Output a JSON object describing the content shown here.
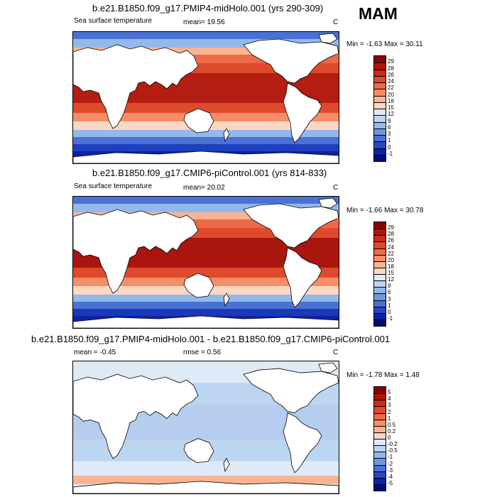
{
  "season": "MAM",
  "panels": [
    {
      "title": "b.e21.B1850.f09_g17.PMIP4-midHolo.001 (yrs 290-309)",
      "variable": "Sea surface temperature",
      "stat": "mean=  19.56",
      "unit": "C",
      "minmax": "Min = -1.63 Max =  30.11",
      "kind": "abs",
      "levels": [
        "29",
        "28",
        "26",
        "24",
        "22",
        "20",
        "18",
        "15",
        "12",
        "9",
        "6",
        "3",
        "1",
        "0",
        "-1"
      ],
      "colors": [
        "#8b0000",
        "#b0150a",
        "#cc2a1a",
        "#df4a2c",
        "#ec6a46",
        "#f58e66",
        "#f9b494",
        "#fbd8c4",
        "#dfeaf7",
        "#bcd5f1",
        "#93b8ea",
        "#6f97e0",
        "#4a72d4",
        "#2548c4",
        "#0a23a8",
        "#000e7a"
      ],
      "tropic_color": "#b41d12",
      "polar_color": "#1f3fbf"
    },
    {
      "title": "b.e21.B1850.f09_g17.CMIP6-piControl.001 (yrs 814-833)",
      "variable": "Sea surface temperature",
      "stat": "mean=  20.02",
      "unit": "C",
      "minmax": "Min = -1.66 Max =  30.78",
      "kind": "abs",
      "levels": [
        "29",
        "28",
        "26",
        "24",
        "22",
        "20",
        "18",
        "15",
        "12",
        "9",
        "6",
        "3",
        "1",
        "0",
        "-1"
      ],
      "colors": [
        "#8b0000",
        "#b0150a",
        "#cc2a1a",
        "#df4a2c",
        "#ec6a46",
        "#f58e66",
        "#f9b494",
        "#fbd8c4",
        "#dfeaf7",
        "#bcd5f1",
        "#93b8ea",
        "#6f97e0",
        "#4a72d4",
        "#2548c4",
        "#0a23a8",
        "#000e7a"
      ],
      "tropic_color": "#a8160d",
      "polar_color": "#1a38b8"
    },
    {
      "title": "b.e21.B1850.f09_g17.PMIP4-midHolo.001 - b.e21.B1850.f09_g17.CMIP6-piControl.001",
      "variable": "",
      "stat": "mean =  -0.45",
      "stat2": "rmse =   0.56",
      "unit": "C",
      "minmax": "Min = -1.78 Max =  1.48",
      "kind": "diff",
      "levels": [
        "5",
        "4",
        "3",
        "2",
        "1",
        "0.5",
        "0.2",
        "0",
        "-0.2",
        "-0.5",
        "-1",
        "-2",
        "-3",
        "-4",
        "-5"
      ],
      "colors": [
        "#8b0000",
        "#b0150a",
        "#cc2a1a",
        "#df4a2c",
        "#ec6a46",
        "#f58e66",
        "#f9b494",
        "#fbd8c4",
        "#dfeaf7",
        "#bcd5f1",
        "#93b8ea",
        "#6f97e0",
        "#4a72d4",
        "#2548c4",
        "#0a23a8",
        "#000e7a"
      ],
      "tropic_color": "#b5cdef",
      "polar_color": "#9bbce9"
    }
  ]
}
